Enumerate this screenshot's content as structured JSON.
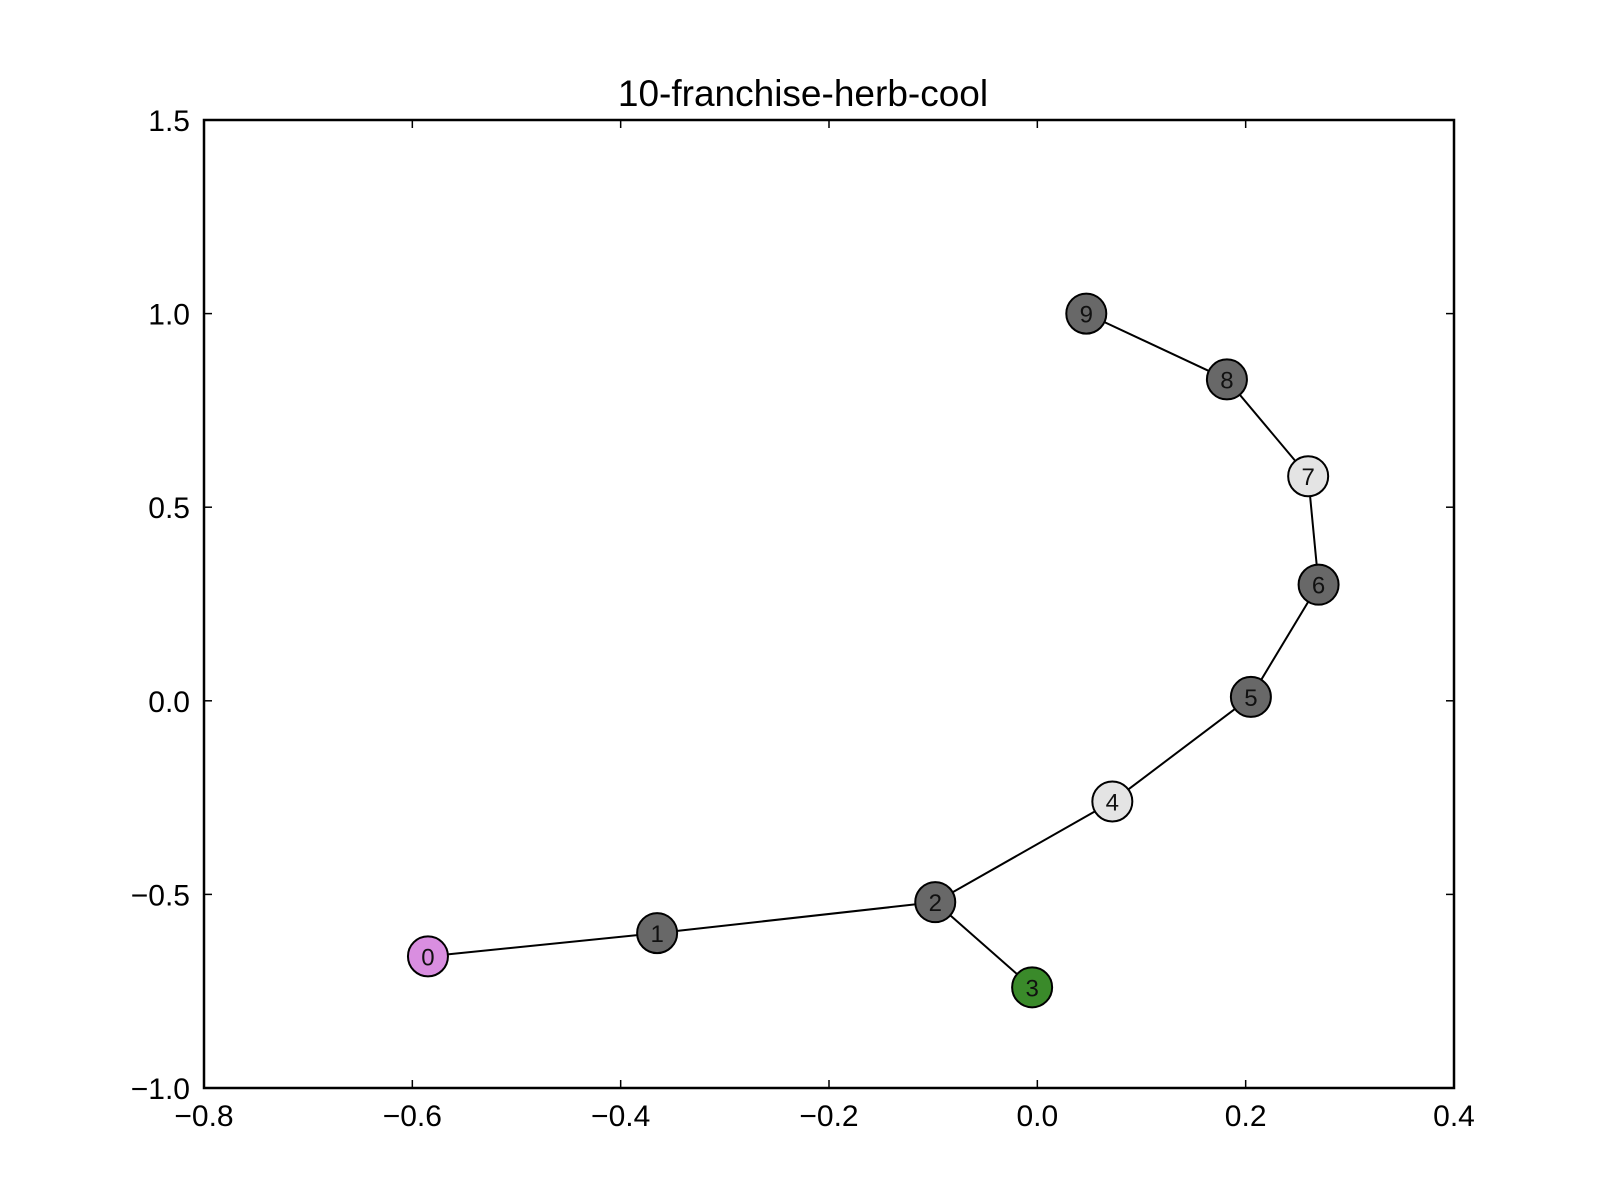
{
  "chart_data": {
    "type": "scatter",
    "title": "10-franchise-herb-cool",
    "xlabel": "",
    "ylabel": "",
    "xlim": [
      -0.8,
      0.4
    ],
    "ylim": [
      -1.0,
      1.5
    ],
    "x_ticks": [
      -0.8,
      -0.6,
      -0.4,
      -0.2,
      0.0,
      0.2,
      0.4
    ],
    "y_ticks": [
      -1.0,
      -0.5,
      0.0,
      0.5,
      1.0,
      1.5
    ],
    "x_tick_labels": [
      "−0.8",
      "−0.6",
      "−0.4",
      "−0.2",
      "0.0",
      "0.2",
      "0.4"
    ],
    "y_tick_labels": [
      "−1.0",
      "−0.5",
      "0.0",
      "0.5",
      "1.0",
      "1.5"
    ],
    "grid": false,
    "nodes": [
      {
        "id": "0",
        "x": -0.585,
        "y": -0.66,
        "color": "#d98ee0"
      },
      {
        "id": "1",
        "x": -0.365,
        "y": -0.6,
        "color": "#686868"
      },
      {
        "id": "2",
        "x": -0.098,
        "y": -0.52,
        "color": "#686868"
      },
      {
        "id": "3",
        "x": -0.005,
        "y": -0.74,
        "color": "#3a8a2a"
      },
      {
        "id": "4",
        "x": 0.072,
        "y": -0.26,
        "color": "#e4e4e4"
      },
      {
        "id": "5",
        "x": 0.205,
        "y": 0.01,
        "color": "#686868"
      },
      {
        "id": "6",
        "x": 0.27,
        "y": 0.3,
        "color": "#686868"
      },
      {
        "id": "7",
        "x": 0.26,
        "y": 0.58,
        "color": "#e4e4e4"
      },
      {
        "id": "8",
        "x": 0.182,
        "y": 0.83,
        "color": "#686868"
      },
      {
        "id": "9",
        "x": 0.047,
        "y": 1.0,
        "color": "#686868"
      }
    ],
    "edges": [
      [
        "0",
        "1"
      ],
      [
        "1",
        "2"
      ],
      [
        "2",
        "3"
      ],
      [
        "2",
        "4"
      ],
      [
        "4",
        "5"
      ],
      [
        "5",
        "6"
      ],
      [
        "6",
        "7"
      ],
      [
        "7",
        "8"
      ],
      [
        "8",
        "9"
      ]
    ]
  }
}
